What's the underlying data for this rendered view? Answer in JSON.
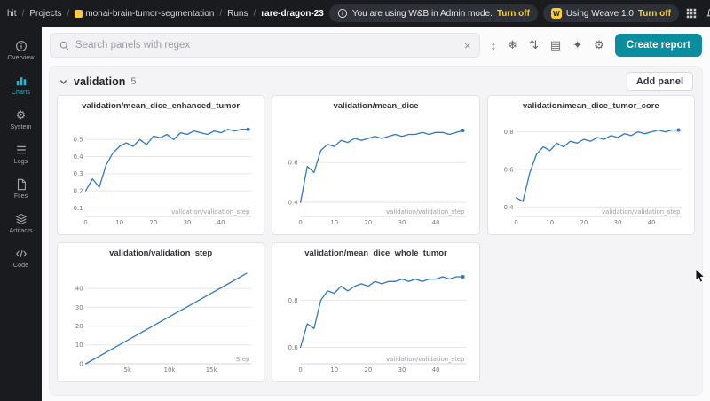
{
  "colors": {
    "accent_teal": "#0a8d9e",
    "brand_gold": "#ffcc33",
    "run_line_blue": "#2e77c5",
    "topbar_bg": "#191b1f"
  },
  "topbar": {
    "breadcrumb": [
      {
        "label": "hit"
      },
      {
        "label": "Projects"
      },
      {
        "label": "monai-brain-tumor-segmentation"
      },
      {
        "label": "Runs"
      },
      {
        "label": "rare-dragon-23"
      }
    ],
    "admin_banner": {
      "text": "You are using W&B in Admin mode.",
      "action_label": "Turn off"
    },
    "weave_banner": {
      "text": "Using Weave 1.0",
      "action_label": "Turn off"
    },
    "help_glyph": "?"
  },
  "sidebar": {
    "items": [
      {
        "label": "Overview",
        "icon": "info-icon"
      },
      {
        "label": "Charts",
        "icon": "bar-chart-icon",
        "active": true
      },
      {
        "label": "System",
        "icon": "gear-icon"
      },
      {
        "label": "Logs",
        "icon": "list-icon"
      },
      {
        "label": "Files",
        "icon": "document-icon"
      },
      {
        "label": "Artifacts",
        "icon": "layers-icon"
      },
      {
        "label": "Code",
        "icon": "code-icon"
      }
    ]
  },
  "toolbar": {
    "search_placeholder": "Search panels with regex",
    "clear_glyph": "×",
    "icons": [
      {
        "name": "expand-panels",
        "glyph": "↕"
      },
      {
        "name": "snowflake",
        "glyph": "❄"
      },
      {
        "name": "sort-panels",
        "glyph": "⇅"
      },
      {
        "name": "panel-layout",
        "glyph": "▤"
      },
      {
        "name": "sparkle",
        "glyph": "✦"
      },
      {
        "name": "settings-gear",
        "glyph": "⚙"
      }
    ],
    "create_report_label": "Create report"
  },
  "section": {
    "title": "validation",
    "count": "5",
    "add_panel_label": "Add panel"
  },
  "chart_data": [
    {
      "type": "line",
      "title": "validation/mean_dice_enhanced_tumor",
      "xlabel": "validation/validation_step",
      "line_color": "#2e77c5",
      "end_dot": true,
      "xlim": [
        0,
        49
      ],
      "ylim": [
        0.05,
        0.6
      ],
      "yticks": [
        0.1,
        0.2,
        0.3,
        0.4,
        0.5
      ],
      "ytick_labels": [
        "0.1",
        "0.2",
        "0.3",
        "0.4",
        "0.5"
      ],
      "xticks": [
        0,
        10,
        20,
        30,
        40
      ],
      "xtick_labels": [
        "0",
        "10",
        "20",
        "30",
        "40"
      ],
      "x": [
        0,
        2,
        4,
        6,
        8,
        10,
        12,
        14,
        16,
        18,
        20,
        22,
        24,
        26,
        28,
        30,
        32,
        34,
        36,
        38,
        40,
        42,
        44,
        46,
        48
      ],
      "y": [
        0.2,
        0.27,
        0.22,
        0.35,
        0.42,
        0.46,
        0.48,
        0.46,
        0.5,
        0.47,
        0.52,
        0.51,
        0.53,
        0.5,
        0.54,
        0.53,
        0.55,
        0.54,
        0.53,
        0.55,
        0.54,
        0.56,
        0.55,
        0.56,
        0.56
      ]
    },
    {
      "type": "line",
      "title": "validation/mean_dice",
      "xlabel": "validation/validation_step",
      "line_color": "#2e77c5",
      "end_dot": true,
      "xlim": [
        0,
        49
      ],
      "ylim": [
        0.33,
        0.8
      ],
      "yticks": [
        0.4,
        0.6
      ],
      "ytick_labels": [
        "0.4",
        "0.6"
      ],
      "xticks": [
        0,
        10,
        20,
        30,
        40
      ],
      "xtick_labels": [
        "0",
        "10",
        "20",
        "30",
        "40"
      ],
      "x": [
        0,
        2,
        4,
        6,
        8,
        10,
        12,
        14,
        16,
        18,
        20,
        22,
        24,
        26,
        28,
        30,
        32,
        34,
        36,
        38,
        40,
        42,
        44,
        46,
        48
      ],
      "y": [
        0.4,
        0.58,
        0.55,
        0.66,
        0.69,
        0.68,
        0.71,
        0.7,
        0.72,
        0.71,
        0.72,
        0.73,
        0.72,
        0.73,
        0.74,
        0.73,
        0.74,
        0.74,
        0.75,
        0.74,
        0.75,
        0.75,
        0.74,
        0.75,
        0.76
      ]
    },
    {
      "type": "line",
      "title": "validation/mean_dice_tumor_core",
      "xlabel": "validation/validation_step",
      "line_color": "#2e77c5",
      "end_dot": true,
      "xlim": [
        0,
        49
      ],
      "ylim": [
        0.35,
        0.85
      ],
      "yticks": [
        0.4,
        0.6,
        0.8
      ],
      "ytick_labels": [
        "0.4",
        "0.6",
        "0.8"
      ],
      "xticks": [
        0,
        10,
        20,
        30,
        40
      ],
      "xtick_labels": [
        "0",
        "10",
        "20",
        "30",
        "40"
      ],
      "x": [
        0,
        2,
        4,
        6,
        8,
        10,
        12,
        14,
        16,
        18,
        20,
        22,
        24,
        26,
        28,
        30,
        32,
        34,
        36,
        38,
        40,
        42,
        44,
        46,
        48
      ],
      "y": [
        0.45,
        0.43,
        0.58,
        0.68,
        0.72,
        0.7,
        0.74,
        0.72,
        0.75,
        0.74,
        0.76,
        0.75,
        0.77,
        0.76,
        0.78,
        0.77,
        0.79,
        0.78,
        0.8,
        0.79,
        0.8,
        0.81,
        0.8,
        0.81,
        0.81
      ]
    },
    {
      "type": "line",
      "title": "validation/validation_step",
      "xlabel": "Step",
      "line_color": "#2e77c5",
      "end_dot": false,
      "xlim": [
        0,
        19800
      ],
      "ylim": [
        0,
        50
      ],
      "yticks": [
        0,
        10,
        20,
        30,
        40
      ],
      "ytick_labels": [
        "0",
        "10",
        "20",
        "30",
        "40"
      ],
      "xticks": [
        5000,
        10000,
        15000
      ],
      "xtick_labels": [
        "5k",
        "10k",
        "15k"
      ],
      "x": [
        0,
        2400,
        4800,
        7200,
        9600,
        12000,
        14400,
        16800,
        19200
      ],
      "y": [
        0,
        6,
        12,
        18,
        24,
        30,
        36,
        42,
        48
      ]
    },
    {
      "type": "line",
      "title": "validation/mean_dice_whole_tumor",
      "xlabel": "validation/validation_step",
      "line_color": "#2e77c5",
      "end_dot": true,
      "xlim": [
        0,
        49
      ],
      "ylim": [
        0.53,
        0.93
      ],
      "yticks": [
        0.6,
        0.8
      ],
      "ytick_labels": [
        "0.6",
        "0.8"
      ],
      "xticks": [
        0,
        10,
        20,
        30,
        40
      ],
      "xtick_labels": [
        "0",
        "10",
        "20",
        "30",
        "40"
      ],
      "x": [
        0,
        2,
        4,
        6,
        8,
        10,
        12,
        14,
        16,
        18,
        20,
        22,
        24,
        26,
        28,
        30,
        32,
        34,
        36,
        38,
        40,
        42,
        44,
        46,
        48
      ],
      "y": [
        0.6,
        0.7,
        0.68,
        0.8,
        0.84,
        0.83,
        0.86,
        0.84,
        0.86,
        0.87,
        0.86,
        0.88,
        0.87,
        0.88,
        0.88,
        0.89,
        0.88,
        0.89,
        0.88,
        0.89,
        0.89,
        0.9,
        0.89,
        0.9,
        0.9
      ]
    }
  ]
}
